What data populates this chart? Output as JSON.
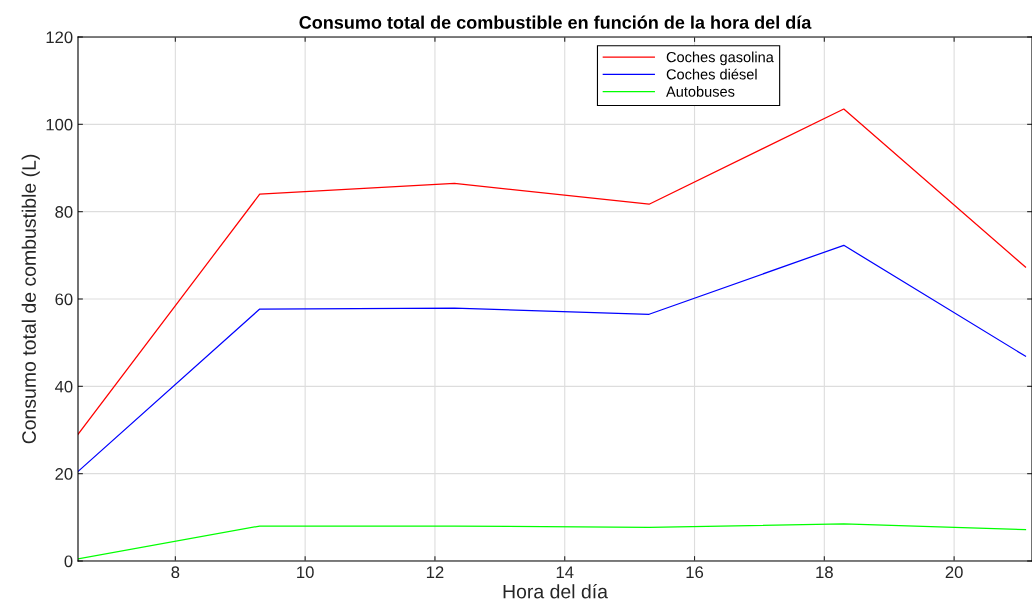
{
  "chart_data": {
    "type": "line",
    "title": "Consumo total de combustible en función de la hora del día",
    "xlabel": "Hora del día",
    "ylabel": "Consumo total de combustible (L)",
    "x": [
      6.5,
      9.3,
      12.3,
      15.3,
      18.3,
      21.1
    ],
    "series": [
      {
        "name": "Coches gasolina",
        "color": "#ff0000",
        "values": [
          29,
          84,
          86.5,
          81.7,
          103.5,
          67.3
        ]
      },
      {
        "name": "Coches diésel",
        "color": "#0000ff",
        "values": [
          20.5,
          57.7,
          57.9,
          56.5,
          72.3,
          46.9
        ]
      },
      {
        "name": "Autobuses",
        "color": "#00ff00",
        "values": [
          0.5,
          8,
          8,
          7.7,
          8.5,
          7.2
        ]
      }
    ],
    "xlim": [
      6.5,
      21.2
    ],
    "xticks": [
      8,
      10,
      12,
      14,
      16,
      18,
      20
    ],
    "ylim": [
      0,
      120
    ],
    "yticks": [
      0,
      20,
      40,
      60,
      80,
      100,
      120
    ],
    "grid": true,
    "legend": "top",
    "marker": "none",
    "line_style": "solid"
  }
}
